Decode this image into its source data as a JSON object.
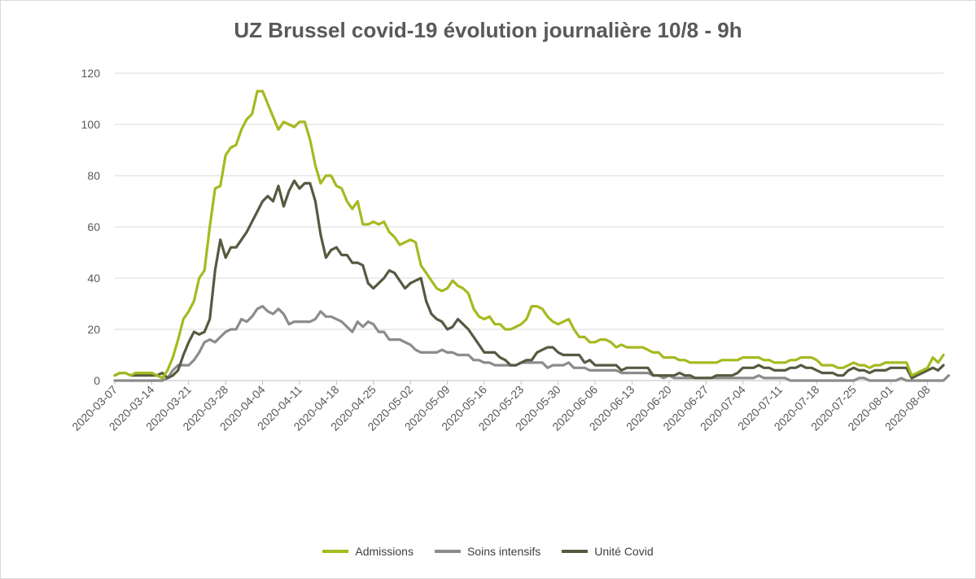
{
  "chart_data": {
    "type": "line",
    "title": "UZ Brussel covid-19 évolution journalière 10/8 - 9h",
    "xlabel": "",
    "ylabel": "",
    "ylim": [
      0,
      120
    ],
    "yticks": [
      "0",
      "20",
      "40",
      "60",
      "80",
      "100",
      "120"
    ],
    "grid": true,
    "legend_position": "bottom",
    "x_start": "2020-03-07",
    "x_end": "2020-08-10",
    "xticks": [
      "2020-03-07",
      "2020-03-14",
      "2020-03-21",
      "2020-03-28",
      "2020-04-04",
      "2020-04-11",
      "2020-04-18",
      "2020-04-25",
      "2020-05-02",
      "2020-05-09",
      "2020-05-16",
      "2020-05-23",
      "2020-05-30",
      "2020-06-06",
      "2020-06-13",
      "2020-06-20",
      "2020-06-27",
      "2020-07-04",
      "2020-07-11",
      "2020-07-18",
      "2020-07-25",
      "2020-08-01",
      "2020-08-08"
    ],
    "series": [
      {
        "name": "Admissions",
        "color": "#a6b91f",
        "values": [
          2,
          3,
          3,
          2,
          3,
          3,
          3,
          3,
          2,
          1,
          4,
          9,
          16,
          24,
          27,
          31,
          40,
          43,
          60,
          75,
          76,
          88,
          91,
          92,
          98,
          102,
          104,
          113,
          113,
          108,
          103,
          98,
          101,
          100,
          99,
          101,
          101,
          94,
          84,
          77,
          80,
          80,
          76,
          75,
          70,
          67,
          70,
          61,
          61,
          62,
          61,
          62,
          58,
          56,
          53,
          54,
          55,
          54,
          45,
          42,
          39,
          36,
          35,
          36,
          39,
          37,
          36,
          34,
          28,
          25,
          24,
          25,
          22,
          22,
          20,
          20,
          21,
          22,
          24,
          29,
          29,
          28,
          25,
          23,
          22,
          23,
          24,
          20,
          17,
          17,
          15,
          15,
          16,
          16,
          15,
          13,
          14,
          13,
          13,
          13,
          13,
          12,
          11,
          11,
          9,
          9,
          9,
          8,
          8,
          7,
          7,
          7,
          7,
          7,
          7,
          8,
          8,
          8,
          8,
          9,
          9,
          9,
          9,
          8,
          8,
          7,
          7,
          7,
          8,
          8,
          9,
          9,
          9,
          8,
          6,
          6,
          6,
          5,
          5,
          6,
          7,
          6,
          6,
          5,
          6,
          6,
          7,
          7,
          7,
          7,
          7,
          2,
          3,
          4,
          5,
          9,
          7,
          10
        ]
      },
      {
        "name": "Soins intensifs",
        "color": "#8c8c8c",
        "values": [
          0,
          0,
          0,
          0,
          0,
          0,
          0,
          0,
          0,
          0,
          1,
          4,
          6,
          6,
          6,
          8,
          11,
          15,
          16,
          15,
          17,
          19,
          20,
          20,
          24,
          23,
          25,
          28,
          29,
          27,
          26,
          28,
          26,
          22,
          23,
          23,
          23,
          23,
          24,
          27,
          25,
          25,
          24,
          23,
          21,
          19,
          23,
          21,
          23,
          22,
          19,
          19,
          16,
          16,
          16,
          15,
          14,
          12,
          11,
          11,
          11,
          11,
          12,
          11,
          11,
          10,
          10,
          10,
          8,
          8,
          7,
          7,
          6,
          6,
          6,
          6,
          6,
          7,
          7,
          7,
          7,
          7,
          5,
          6,
          6,
          6,
          7,
          5,
          5,
          5,
          4,
          4,
          4,
          4,
          4,
          4,
          3,
          3,
          3,
          3,
          3,
          3,
          2,
          2,
          1,
          2,
          1,
          1,
          1,
          1,
          1,
          1,
          1,
          1,
          1,
          1,
          1,
          1,
          1,
          1,
          1,
          1,
          2,
          1,
          1,
          1,
          1,
          1,
          0,
          0,
          0,
          0,
          0,
          0,
          0,
          0,
          0,
          0,
          0,
          0,
          0,
          1,
          1,
          0,
          0,
          0,
          0,
          0,
          0,
          1,
          0,
          0,
          0,
          0,
          0,
          0,
          0,
          0,
          2
        ]
      },
      {
        "name": "Unité Covid",
        "color": "#545b41",
        "values": [
          2,
          3,
          3,
          2,
          2,
          2,
          2,
          2,
          2,
          3,
          1,
          2,
          4,
          10,
          15,
          19,
          18,
          19,
          24,
          43,
          55,
          48,
          52,
          52,
          55,
          58,
          62,
          66,
          70,
          72,
          70,
          76,
          68,
          74,
          78,
          75,
          77,
          77,
          70,
          57,
          48,
          51,
          52,
          49,
          49,
          46,
          46,
          45,
          38,
          36,
          38,
          40,
          43,
          42,
          39,
          36,
          38,
          39,
          40,
          31,
          26,
          24,
          23,
          20,
          21,
          24,
          22,
          20,
          17,
          14,
          11,
          11,
          11,
          9,
          8,
          6,
          6,
          7,
          8,
          8,
          11,
          12,
          13,
          13,
          11,
          10,
          10,
          10,
          10,
          7,
          8,
          6,
          6,
          6,
          6,
          6,
          4,
          5,
          5,
          5,
          5,
          5,
          2,
          2,
          2,
          2,
          2,
          3,
          2,
          2,
          1,
          1,
          1,
          1,
          2,
          2,
          2,
          2,
          3,
          5,
          5,
          5,
          6,
          5,
          5,
          4,
          4,
          4,
          5,
          5,
          6,
          5,
          5,
          4,
          3,
          3,
          3,
          2,
          2,
          4,
          5,
          4,
          4,
          3,
          4,
          4,
          4,
          5,
          5,
          5,
          5,
          1,
          2,
          3,
          4,
          5,
          4,
          6
        ]
      }
    ]
  }
}
